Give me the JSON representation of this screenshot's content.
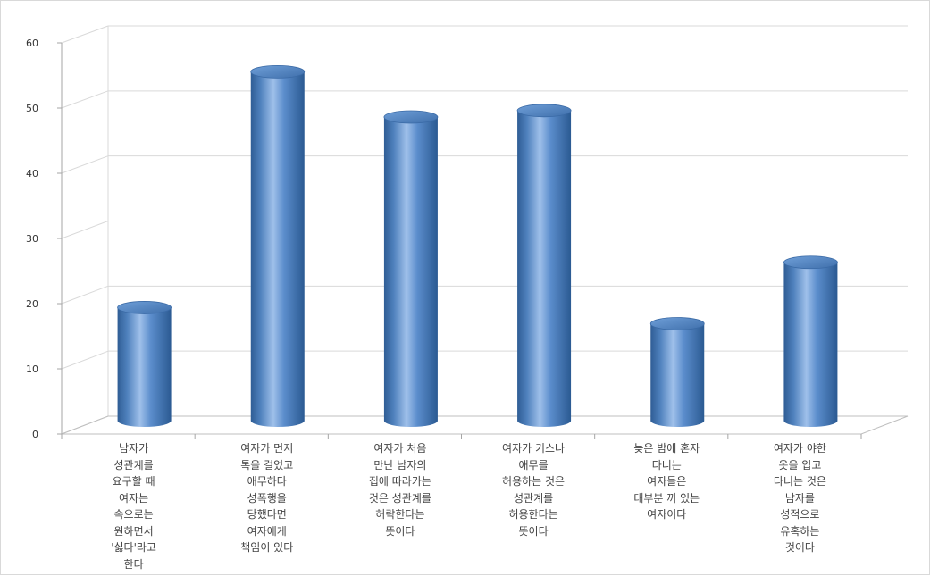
{
  "chart_data": {
    "type": "bar",
    "style": "3d-cylinder",
    "categories": [
      "남자가\n성관계를\n요구할 때\n여자는\n속으로는\n원하면서\n'싫다'라고\n한다",
      "여자가 먼저\n톡을 걸었고\n애무하다\n성폭행을\n당했다면\n여자에게\n책임이 있다",
      "여자가 처음\n만난 남자의\n집에 따라가는\n것은 성관계를\n허락한다는\n뜻이다",
      "여자가 키스나\n애무를\n허용하는 것은\n성관계를\n허용한다는\n뜻이다",
      "늦은 밤에 혼자\n다니는\n여자들은\n대부분 끼 있는\n여자이다",
      "여자가 야한\n옷을 입고\n다니는 것은\n남자를\n성적으로\n유혹하는\n것이다"
    ],
    "values": [
      17.5,
      54,
      47,
      48,
      15,
      24.5
    ],
    "yticks": [
      "0",
      "10",
      "20",
      "30",
      "40",
      "50",
      "60"
    ],
    "ylim": [
      0,
      60
    ],
    "grid": true,
    "legend": "none",
    "bar_color": "#4f81bd",
    "title": "",
    "xlabel": "",
    "ylabel": ""
  }
}
